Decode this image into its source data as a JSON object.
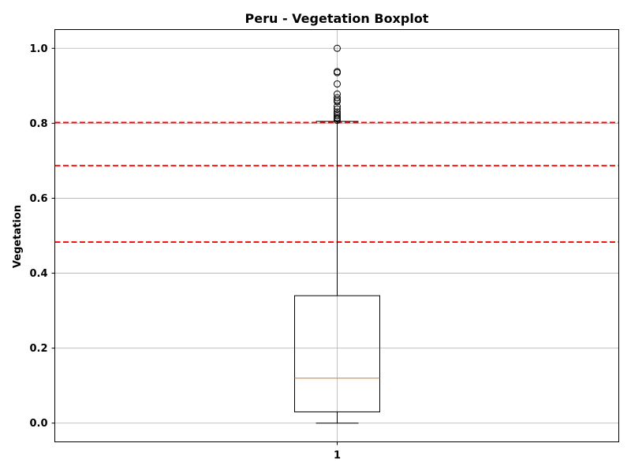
{
  "chart_data": {
    "type": "boxplot",
    "title": "Peru - Vegetation Boxplot",
    "xlabel": "",
    "ylabel": "Vegetation",
    "ylim": [
      -0.05,
      1.05
    ],
    "yticks": [
      0.0,
      0.2,
      0.4,
      0.6,
      0.8,
      1.0
    ],
    "ytick_labels": [
      "0.0",
      "0.2",
      "0.4",
      "0.6",
      "0.8",
      "1.0"
    ],
    "categories": [
      "1"
    ],
    "grid": true,
    "box": {
      "whisker_low": 0.0,
      "q1": 0.03,
      "median": 0.12,
      "q3": 0.34,
      "whisker_high": 0.805,
      "outliers": [
        0.808,
        0.812,
        0.815,
        0.82,
        0.825,
        0.83,
        0.838,
        0.845,
        0.858,
        0.862,
        0.868,
        0.878,
        0.905,
        0.935,
        0.938,
        1.0
      ]
    },
    "reference_lines": [
      0.802,
      0.687,
      0.483
    ],
    "colors": {
      "box": "#000000",
      "median": "#ff7f0e",
      "reference_line": "#ff0000",
      "grid": "#b0b0b0"
    }
  }
}
